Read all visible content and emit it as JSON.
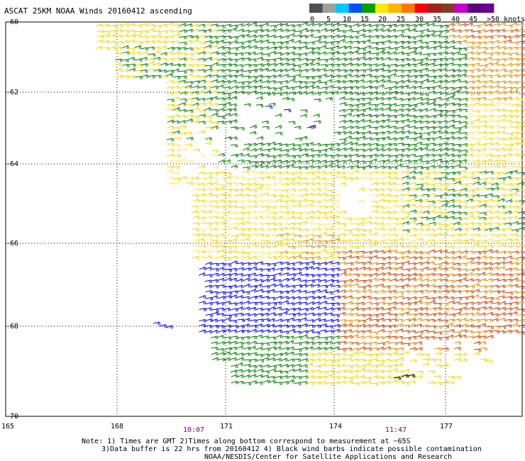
{
  "title": "ASCAT 25KM NOAA Winds 20160412 ascending",
  "colorbar": {
    "ticks": [
      "0",
      "5",
      "10",
      "15",
      "20",
      "25",
      "30",
      "35",
      "40",
      "45",
      ">50 knots"
    ],
    "colors": [
      "#505050",
      "#a0a0a0",
      "#00c8ff",
      "#0050ff",
      "#00a000",
      "#ffe800",
      "#ffb400",
      "#ff7800",
      "#ff0000",
      "#a02020",
      "#804020",
      "#c800c8",
      "#5a0078",
      "#6a0090"
    ]
  },
  "latitudes": [
    "-60",
    "-62",
    "-64",
    "-66",
    "-68",
    "-70"
  ],
  "longitudes": [
    "165",
    "168",
    "171",
    "174",
    "177"
  ],
  "times": [
    "10:07",
    "11:47"
  ],
  "notes": [
    "Note: 1) Times are GMT 2)Times along bottom correspond to measurement at ~65S",
    "3)Data buffer is 22 hrs from 20160412 4) Black wind barbs indicate possible contamination",
    "NOAA/NESDIS/Center for Satellite Applications and Research"
  ],
  "wind_colors": {
    "yellow": "#f2d800",
    "pale": "#ffe870",
    "green": "#008000",
    "dark_green": "#006000",
    "orange": "#e09000",
    "red_orange": "#d04000",
    "blue": "#0000ff",
    "black": "#000000"
  }
}
